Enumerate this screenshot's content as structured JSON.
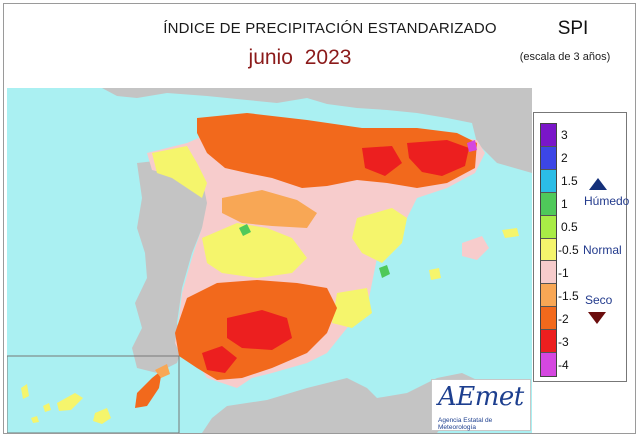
{
  "header": {
    "title": "ÍNDICE DE PRECIPITACIÓN ESTANDARIZADO",
    "month": "junio",
    "year": "2023",
    "index_name": "SPI",
    "scale_note": "(escala de 3 años)"
  },
  "legend": {
    "ticks": [
      "3",
      "2",
      "1.5",
      "1",
      "0.5",
      "-0.5",
      "-1",
      "-1.5",
      "-2",
      "-3",
      "-4"
    ],
    "segments": [
      {
        "color": "#7a16c9"
      },
      {
        "color": "#3c46e6"
      },
      {
        "color": "#2bbde6"
      },
      {
        "color": "#4fc95a"
      },
      {
        "color": "#a9ec46"
      },
      {
        "color": "#f5f56c"
      },
      {
        "color": "#f7cccc"
      },
      {
        "color": "#f8a755"
      },
      {
        "color": "#f2691c"
      },
      {
        "color": "#ec1f1f"
      },
      {
        "color": "#d547e0"
      }
    ],
    "wet_label": "Húmedo",
    "normal_label": "Normal",
    "dry_label": "Seco"
  },
  "logo": {
    "text": "AEmet",
    "subtext": "Agencia Estatal de Meteorología"
  },
  "colors": {
    "sea": "#aaf0f2",
    "land_other": "#c4c4c4",
    "yellow": "#f5f56c",
    "pink": "#f7cccc",
    "light_orange": "#f8a755",
    "orange": "#f2691c",
    "red": "#ec1f1f",
    "green": "#4fc95a",
    "purple": "#d547e0",
    "title_red": "#8b1a1a",
    "label_blue": "#223a8c"
  },
  "map": {
    "regions": "Península Ibérica, Baleares, Canarias"
  }
}
